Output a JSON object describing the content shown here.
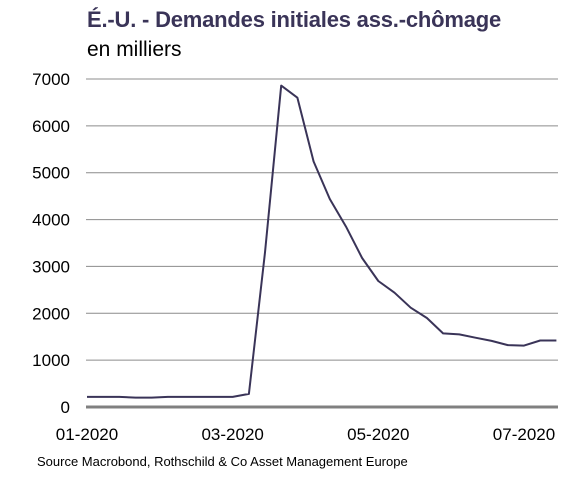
{
  "header": {
    "title": "É.-U. - Demandes initiales ass.-chômage",
    "subtitle": "en milliers"
  },
  "footer": {
    "source": "Source Macrobond, Rothschild & Co Asset Management Europe"
  },
  "chart_data": {
    "type": "line",
    "title": "É.-U. - Demandes initiales ass.-chômage",
    "subtitle": "en milliers",
    "xlabel": "",
    "ylabel": "",
    "ylim": [
      0,
      7000
    ],
    "y_ticks": [
      0,
      1000,
      2000,
      3000,
      4000,
      5000,
      6000,
      7000
    ],
    "x_tick_labels": [
      "01-2020",
      "03-2020",
      "05-2020",
      "07-2020"
    ],
    "x_tick_dates": [
      "2020-01-04",
      "2020-03-07",
      "2020-05-09",
      "2020-07-11"
    ],
    "grid": true,
    "line_color": "#3a3458",
    "series": [
      {
        "name": "",
        "x": [
          "2020-01-04",
          "2020-01-11",
          "2020-01-18",
          "2020-01-25",
          "2020-02-01",
          "2020-02-08",
          "2020-02-15",
          "2020-02-22",
          "2020-02-29",
          "2020-03-07",
          "2020-03-14",
          "2020-03-21",
          "2020-03-28",
          "2020-04-04",
          "2020-04-11",
          "2020-04-18",
          "2020-04-25",
          "2020-05-02",
          "2020-05-09",
          "2020-05-16",
          "2020-05-23",
          "2020-05-30",
          "2020-06-06",
          "2020-06-13",
          "2020-06-20",
          "2020-06-27",
          "2020-07-04",
          "2020-07-11",
          "2020-07-18",
          "2020-07-25"
        ],
        "values": [
          215,
          215,
          215,
          200,
          200,
          215,
          215,
          215,
          215,
          215,
          280,
          3300,
          6860,
          6600,
          5240,
          4440,
          3850,
          3180,
          2690,
          2440,
          2120,
          1900,
          1570,
          1550,
          1480,
          1410,
          1320,
          1310,
          1420,
          1420
        ]
      }
    ]
  }
}
